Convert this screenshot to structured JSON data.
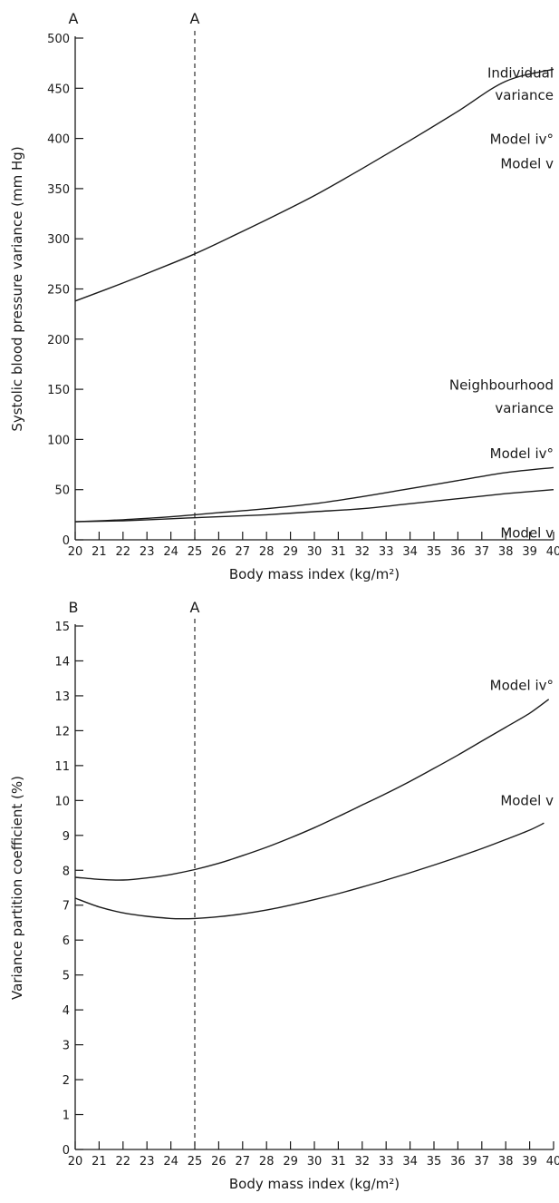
{
  "chart_data": [
    {
      "panel": "A",
      "type": "line",
      "xlabel": "Body mass index (kg/m²)",
      "ylabel": "Systolic blood pressure variance (mm Hg)",
      "xlim": [
        20,
        40
      ],
      "ylim": [
        0,
        500
      ],
      "xticks": [
        20,
        21,
        22,
        23,
        24,
        25,
        26,
        27,
        28,
        29,
        30,
        31,
        32,
        33,
        34,
        35,
        36,
        37,
        38,
        39,
        40
      ],
      "yticks": [
        0,
        50,
        100,
        150,
        200,
        250,
        300,
        350,
        400,
        450,
        500
      ],
      "reference_line": {
        "x": 25,
        "label": "A",
        "style": "dashed"
      },
      "annotations": [
        {
          "text": "Individual",
          "x": 40,
          "y": 465
        },
        {
          "text": "variance",
          "x": 40,
          "y": 443
        },
        {
          "text": "Model iv°",
          "x": 40,
          "y": 399
        },
        {
          "text": "Model v",
          "x": 40,
          "y": 375
        },
        {
          "text": "Neighbourhood",
          "x": 40,
          "y": 154
        },
        {
          "text": "variance",
          "x": 40,
          "y": 131
        },
        {
          "text": "Model iv°",
          "x": 40,
          "y": 86
        },
        {
          "text": "Model v",
          "x": 40,
          "y": 7
        }
      ],
      "series": [
        {
          "x": [
            20,
            22,
            24,
            25,
            26,
            28,
            30,
            32,
            34,
            36,
            38,
            40
          ],
          "values": [
            238,
            256,
            275,
            285,
            296,
            319,
            343,
            370,
            398,
            427,
            457,
            469
          ]
        },
        {
          "x": [
            20,
            22,
            24,
            25,
            26,
            28,
            30,
            32,
            34,
            36,
            38,
            40
          ],
          "values": [
            18,
            20,
            23,
            25,
            27,
            31,
            36,
            43,
            51,
            59,
            67,
            72
          ]
        },
        {
          "x": [
            20,
            22,
            24,
            25,
            26,
            28,
            30,
            32,
            34,
            36,
            38,
            40
          ],
          "values": [
            18,
            19,
            21,
            22,
            23,
            25,
            28,
            31,
            36,
            41,
            46,
            50
          ]
        }
      ]
    },
    {
      "panel": "B",
      "type": "line",
      "xlabel": "Body mass index (kg/m²)",
      "ylabel": "Variance partition coefficient (%)",
      "xlim": [
        20,
        40
      ],
      "ylim": [
        0,
        15
      ],
      "xticks": [
        20,
        21,
        22,
        23,
        24,
        25,
        26,
        27,
        28,
        29,
        30,
        31,
        32,
        33,
        34,
        35,
        36,
        37,
        38,
        39,
        40
      ],
      "yticks": [
        0,
        1,
        2,
        3,
        4,
        5,
        6,
        7,
        8,
        9,
        10,
        11,
        12,
        13,
        14,
        15
      ],
      "reference_line": {
        "x": 25,
        "label": "A",
        "style": "dashed"
      },
      "annotations": [
        {
          "text": "Model iv°",
          "x": 40,
          "y": 13.3
        },
        {
          "text": "Model v",
          "x": 40,
          "y": 10.0
        }
      ],
      "series": [
        {
          "x": [
            20,
            21,
            22,
            23,
            24,
            25,
            26,
            27,
            28,
            29,
            30,
            31,
            32,
            33,
            34,
            35,
            36,
            37,
            38,
            39,
            39.8
          ],
          "values": [
            7.8,
            7.74,
            7.72,
            7.78,
            7.88,
            8.02,
            8.2,
            8.42,
            8.66,
            8.93,
            9.22,
            9.54,
            9.87,
            10.2,
            10.55,
            10.92,
            11.3,
            11.7,
            12.1,
            12.5,
            12.9
          ]
        },
        {
          "x": [
            20,
            21,
            22,
            23,
            24,
            24.5,
            25,
            26,
            27,
            28,
            29,
            30,
            31,
            32,
            33,
            34,
            35,
            36,
            37,
            38,
            39,
            39.6
          ],
          "values": [
            7.2,
            6.95,
            6.78,
            6.68,
            6.62,
            6.61,
            6.62,
            6.67,
            6.75,
            6.86,
            7.0,
            7.16,
            7.33,
            7.52,
            7.72,
            7.93,
            8.15,
            8.38,
            8.62,
            8.88,
            9.15,
            9.35
          ]
        }
      ]
    }
  ]
}
